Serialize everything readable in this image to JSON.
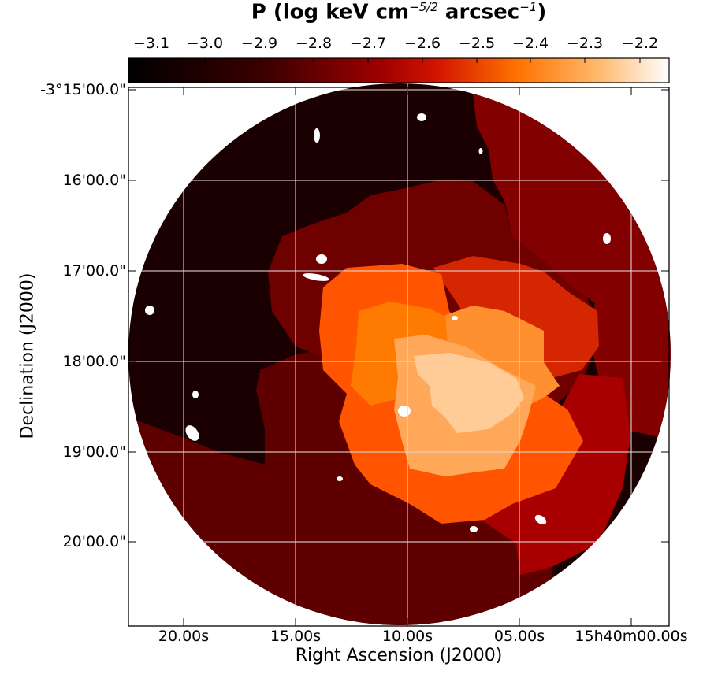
{
  "colorbar": {
    "title_main": "P (log keV cm",
    "title_exp1": "−5/2",
    "title_mid": " arcsec",
    "title_exp2": "−1",
    "title_end": ")",
    "ticks": [
      "−3.1",
      "−3.0",
      "−2.9",
      "−2.8",
      "−2.7",
      "−2.6",
      "−2.5",
      "−2.4",
      "−2.3",
      "−2.2"
    ],
    "colors": {
      "low": "#000000",
      "dark": "#1e0000",
      "mid": "#8a0000",
      "red": "#c80000",
      "orange": "#ff7a00",
      "light": "#ffc890",
      "high": "#ffffff"
    }
  },
  "axes": {
    "xlabel": "Right Ascension (J2000)",
    "ylabel": "Declination (J2000)",
    "xticks": [
      "20.00s",
      "15.00s",
      "10.00s",
      "05.00s",
      "15h40m00.00s"
    ],
    "yticks": [
      "-3°15'00.0\"",
      "16'00.0\"",
      "17'00.0\"",
      "18'00.0\"",
      "19'00.0\"",
      "20'00.0\""
    ]
  },
  "map": {
    "region_colors": {
      "outer_dark": "#1a0000",
      "outer_mid": "#5e0000",
      "ring_dark": "#6e0000",
      "right_mid": "#830000",
      "right_red": "#a80000",
      "ring_red": "#d42600",
      "shell_orange": "#ff5500",
      "inner_orange": "#ff7a00",
      "inner_light_orange": "#ff9030",
      "core_peach": "#ffa85a",
      "core_light": "#ffcc98",
      "mask": "#ffffff",
      "grid": "#d9d9d9"
    }
  }
}
